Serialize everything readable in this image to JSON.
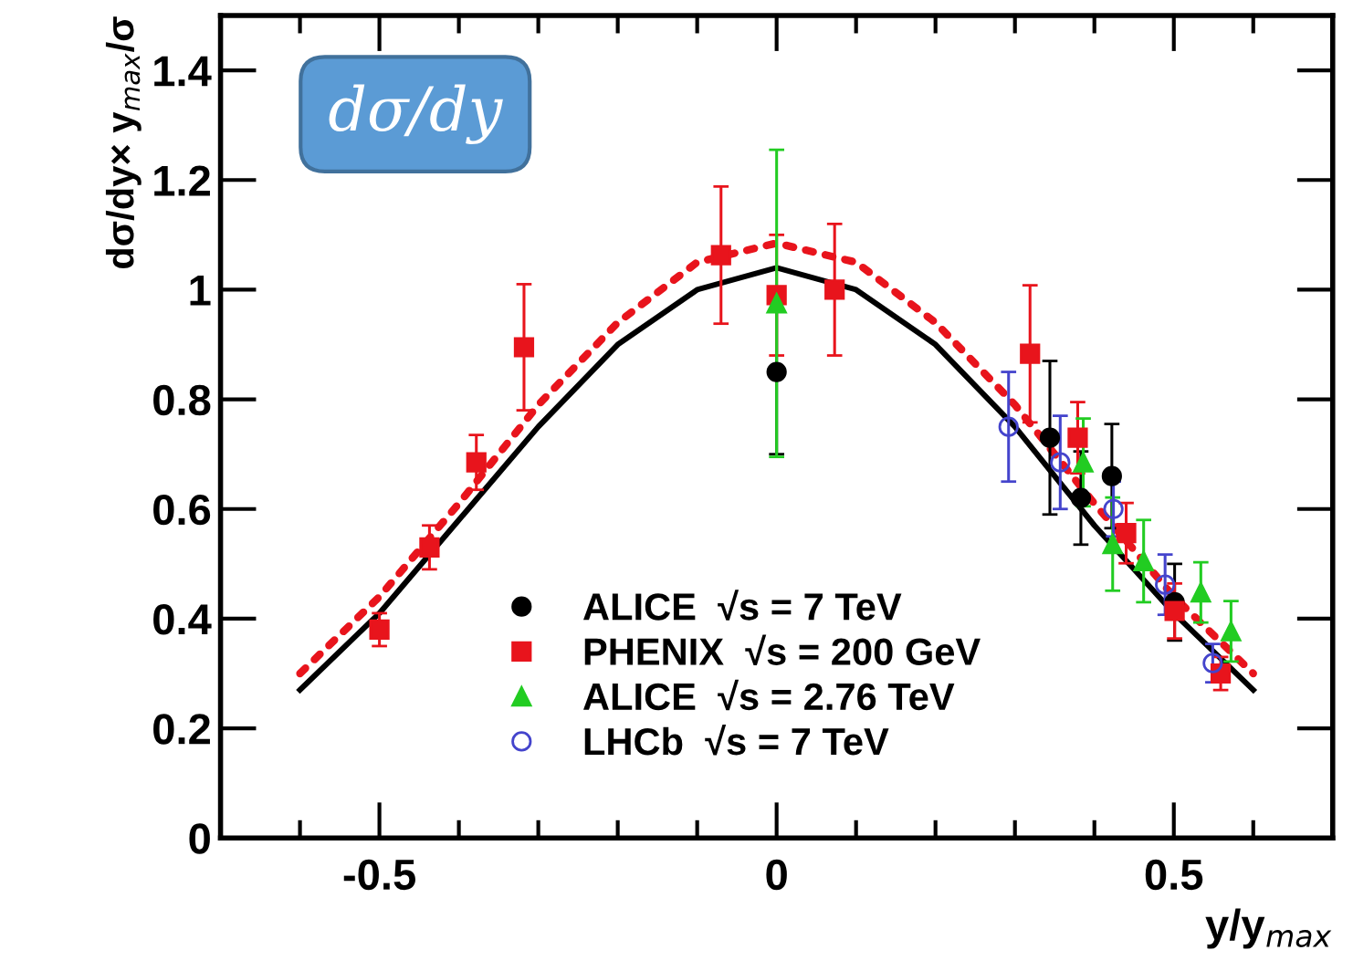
{
  "chart_data": {
    "type": "scatter",
    "xlabel": "y/y$_{max}$",
    "ylabel": "dσ/dy× y$_{max}$/σ",
    "annotations": [
      "dσ/dy"
    ],
    "xlim": [
      -0.7,
      0.7
    ],
    "xticks": [
      -0.5,
      0,
      0.5
    ],
    "ylim": [
      0,
      1.5
    ],
    "yticks": [
      0,
      0.2,
      0.4,
      0.6,
      0.8,
      1,
      1.2,
      1.4
    ],
    "grid": false,
    "legend": "bottom",
    "series": [
      {
        "type": "line",
        "color": "#000000",
        "line_style": "solid",
        "marker": "none",
        "x": [
          -0.6,
          -0.5,
          -0.4,
          -0.3,
          -0.2,
          -0.1,
          0,
          0.1,
          0.2,
          0.3,
          0.4,
          0.5,
          0.6
        ],
        "values": [
          0.27,
          0.41,
          0.58,
          0.75,
          0.9,
          1.0,
          1.04,
          1.0,
          0.9,
          0.75,
          0.57,
          0.41,
          0.27
        ]
      },
      {
        "type": "line",
        "color": "#e8141c",
        "line_style": "dotted",
        "marker": "none",
        "x": [
          -0.6,
          -0.5,
          -0.4,
          -0.3,
          -0.2,
          -0.1,
          0,
          0.1,
          0.2,
          0.3,
          0.4,
          0.5,
          0.6
        ],
        "values": [
          0.3,
          0.44,
          0.61,
          0.79,
          0.94,
          1.05,
          1.085,
          1.05,
          0.94,
          0.79,
          0.61,
          0.44,
          0.3
        ]
      },
      {
        "name": "ALICE  √s = 7 TeV",
        "color": "#000000",
        "marker": "circle",
        "x": [
          0,
          0.344,
          0.383,
          0.422,
          0.501
        ],
        "values": [
          0.85,
          0.73,
          0.62,
          0.66,
          0.43
        ],
        "errors": [
          0.15,
          0.14,
          0.085,
          0.095,
          0.07
        ]
      },
      {
        "name": "PHENIX  √s = 200 GeV",
        "color": "#e8141c",
        "marker": "square",
        "x": [
          -0.5,
          -0.437,
          -0.378,
          -0.318,
          -0.07,
          0,
          0.073,
          0.319,
          0.379,
          0.44,
          0.501,
          0.559
        ],
        "values": [
          0.38,
          0.53,
          0.685,
          0.895,
          1.063,
          0.99,
          1.0,
          0.883,
          0.73,
          0.556,
          0.414,
          0.3
        ],
        "errors": [
          0.03,
          0.04,
          0.05,
          0.115,
          0.125,
          0.11,
          0.12,
          0.125,
          0.065,
          0.055,
          0.05,
          0.03
        ]
      },
      {
        "name": "ALICE  √s = 2.76 TeV",
        "color": "#22cc22",
        "marker": "triangle",
        "x": [
          0,
          0.386,
          0.423,
          0.462,
          0.534,
          0.572
        ],
        "values": [
          0.975,
          0.685,
          0.536,
          0.505,
          0.448,
          0.377
        ],
        "errors": [
          0.28,
          0.08,
          0.085,
          0.075,
          0.055,
          0.055
        ]
      },
      {
        "name": "LHCb  √s = 7 TeV",
        "color": "#4444cc",
        "marker": "circle_open",
        "x": [
          0.292,
          0.357,
          0.424,
          0.489,
          0.549
        ],
        "values": [
          0.75,
          0.685,
          0.6,
          0.462,
          0.319
        ],
        "errors": [
          0.1,
          0.085,
          0.05,
          0.055,
          0.035
        ]
      }
    ]
  }
}
